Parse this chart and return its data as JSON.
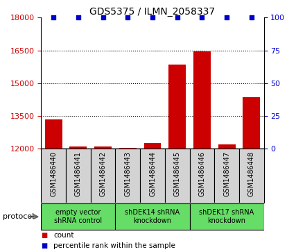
{
  "title": "GDS5375 / ILMN_2058337",
  "samples": [
    "GSM1486440",
    "GSM1486441",
    "GSM1486442",
    "GSM1486443",
    "GSM1486444",
    "GSM1486445",
    "GSM1486446",
    "GSM1486447",
    "GSM1486448"
  ],
  "count_values": [
    13350,
    12100,
    12100,
    12050,
    12250,
    15850,
    16450,
    12200,
    14350
  ],
  "percentile_values": [
    100,
    100,
    100,
    100,
    100,
    100,
    100,
    100,
    100
  ],
  "ylim_left": [
    12000,
    18000
  ],
  "ylim_right": [
    0,
    100
  ],
  "yticks_left": [
    12000,
    13500,
    15000,
    16500,
    18000
  ],
  "yticks_right": [
    0,
    25,
    50,
    75,
    100
  ],
  "bar_color": "#CC0000",
  "scatter_color": "#0000CC",
  "cell_color": "#D3D3D3",
  "groups": [
    {
      "label": "empty vector\nshRNA control",
      "start": 0,
      "end": 2,
      "color": "#66DD66"
    },
    {
      "label": "shDEK14 shRNA\nknockdown",
      "start": 3,
      "end": 5,
      "color": "#66DD66"
    },
    {
      "label": "shDEK17 shRNA\nknockdown",
      "start": 6,
      "end": 8,
      "color": "#66DD66"
    }
  ],
  "protocol_label": "protocol",
  "legend_count_label": "count",
  "legend_percentile_label": "percentile rank within the sample",
  "bg_color": "#ffffff",
  "left_tick_color": "#CC0000",
  "right_tick_color": "#0000CC"
}
